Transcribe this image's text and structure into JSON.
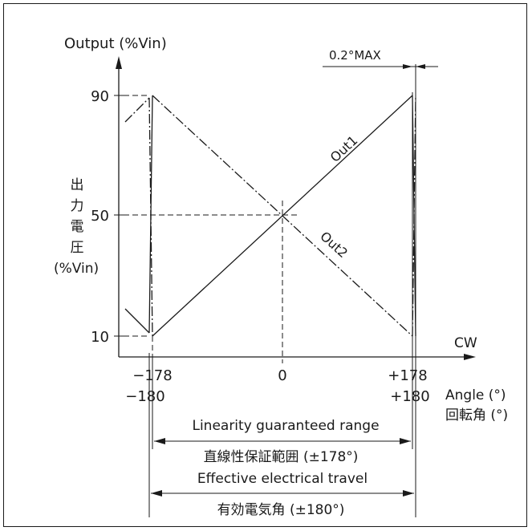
{
  "yaxis": {
    "label_en": "Output (%Vin)",
    "label_jp_chars": [
      "出",
      "力",
      "電",
      "圧"
    ],
    "label_jp_unit": "(%Vin)",
    "ticks": [
      "90",
      "50",
      "10"
    ]
  },
  "xaxis": {
    "direction": "CW",
    "ticks_top": [
      "−178",
      "0",
      "+178"
    ],
    "ticks_bottom": [
      "−180",
      "+180"
    ],
    "label_en": "Angle (°)",
    "label_jp": "回転角 (°)"
  },
  "annotations": {
    "max": "0.2°MAX",
    "out1": "Out1",
    "out2": "Out2",
    "linearity_en": "Linearity guaranteed range",
    "linearity_jp": "直線性保証範囲 (±178°)",
    "effective_en": "Effective electrical travel",
    "effective_jp": "有効電気角 (±180°)"
  }
}
